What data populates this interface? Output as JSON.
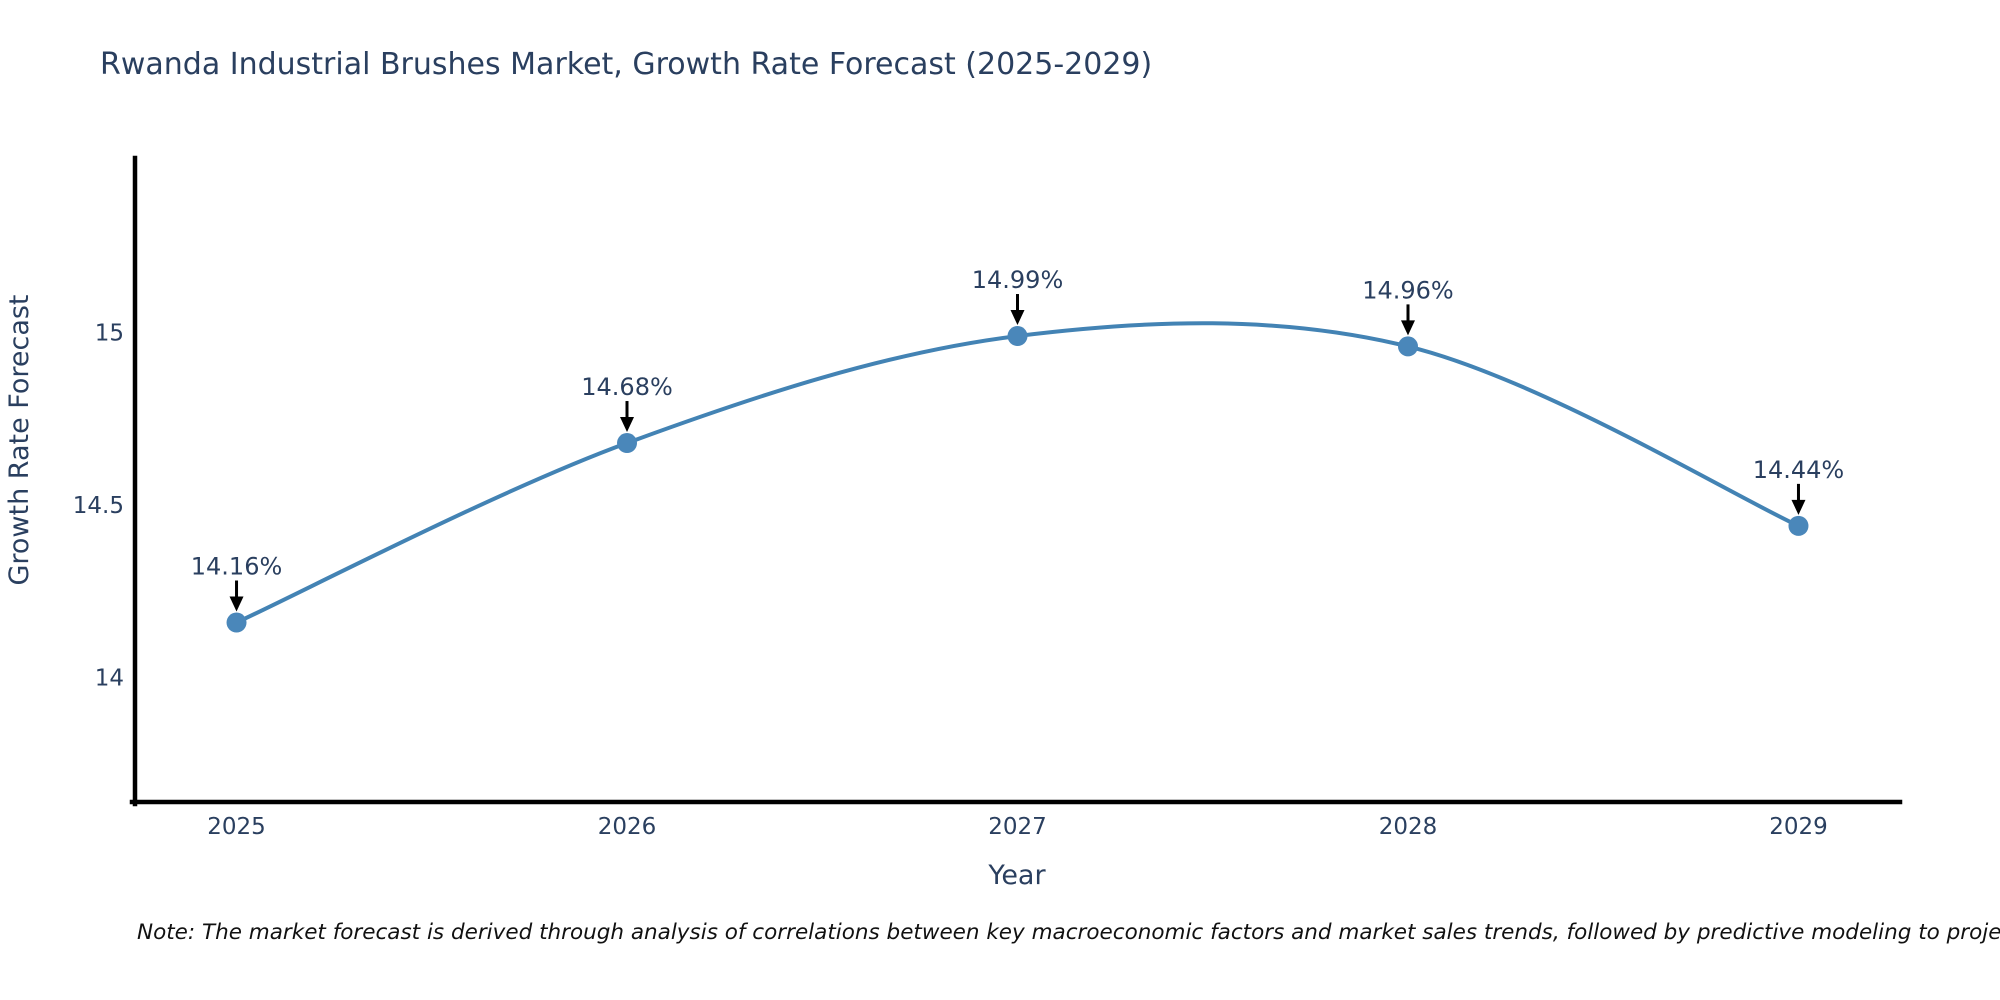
{
  "title": "Rwanda Industrial Brushes Market, Growth Rate Forecast (2025-2029)",
  "note": "Note: The market forecast is derived through analysis of correlations between key macroeconomic factors and market sales trends, followed by predictive modeling to project future sal",
  "chart_data": {
    "type": "line",
    "title": "Rwanda Industrial Brushes Market, Growth Rate Forecast (2025-2029)",
    "xlabel": "Year",
    "ylabel": "Growth Rate Forecast",
    "x": [
      2025,
      2026,
      2027,
      2028,
      2029
    ],
    "xtick_labels": [
      "2025",
      "2026",
      "2027",
      "2028",
      "2029"
    ],
    "series": [
      {
        "name": "Growth Rate Forecast",
        "values": [
          14.16,
          14.68,
          14.99,
          14.96,
          14.44
        ],
        "point_labels": [
          "14.16%",
          "14.68%",
          "14.99%",
          "14.96%",
          "14.44%"
        ]
      }
    ],
    "yticks": [
      14,
      14.5,
      15
    ],
    "ytick_labels": [
      "14",
      "14.5",
      "15"
    ],
    "ylim": [
      13.64,
      15.5
    ],
    "xlim": [
      2024.74,
      2029.26
    ],
    "line_shape": "spline",
    "grid": false,
    "legend": false,
    "point_annotation_arrows": true,
    "colors": {
      "line": "#4383b4",
      "marker": "#4a87ba",
      "axis": "#000000",
      "text": "#2a3f5f",
      "note": "#111111",
      "arrow": "#000000",
      "background": "#ffffff"
    }
  }
}
